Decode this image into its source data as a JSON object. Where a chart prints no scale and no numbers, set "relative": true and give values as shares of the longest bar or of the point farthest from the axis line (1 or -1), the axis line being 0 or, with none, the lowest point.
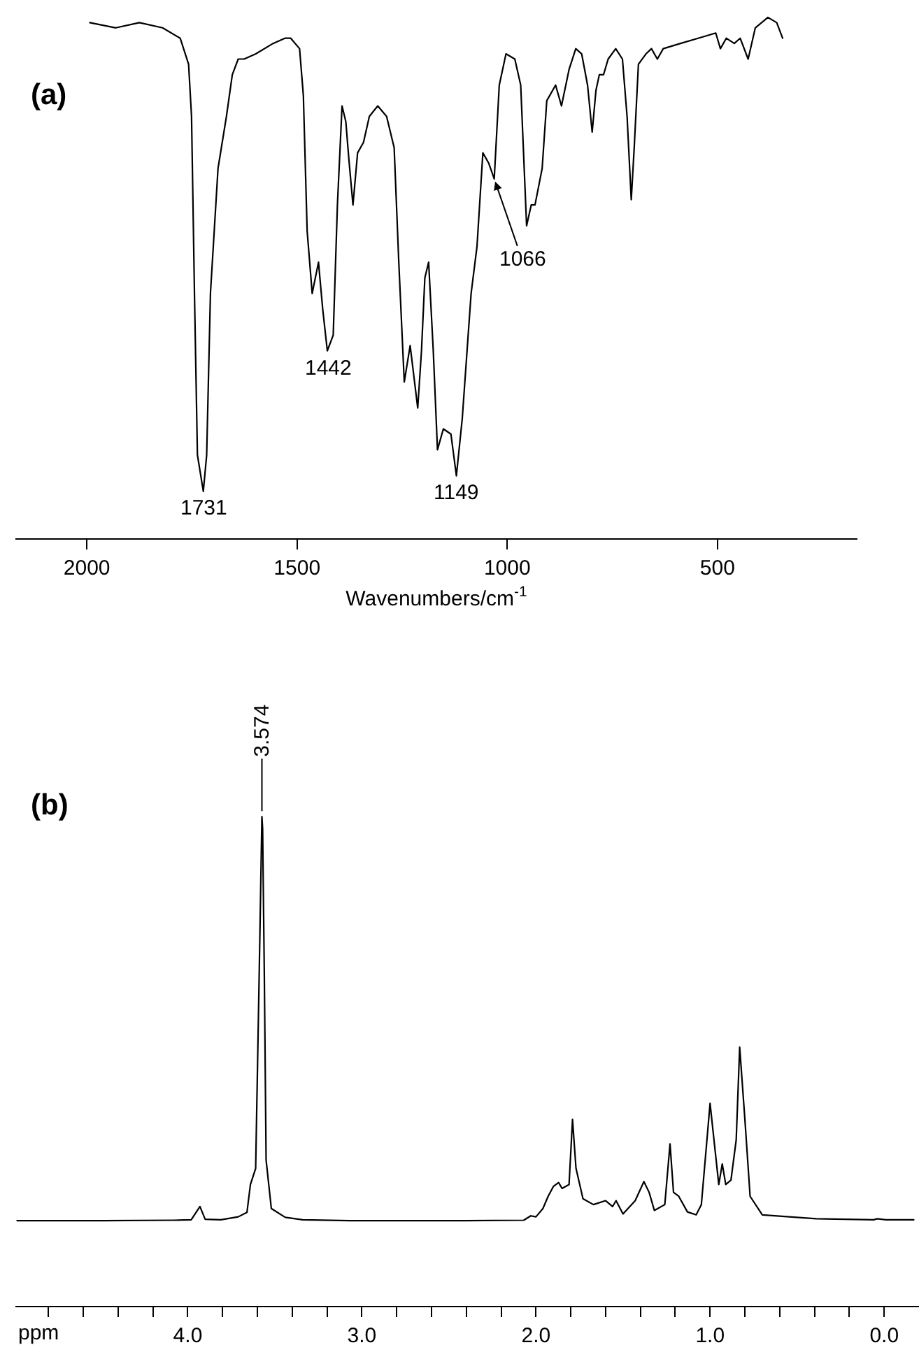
{
  "chart_data": [
    {
      "type": "line",
      "title": "(a)",
      "xlabel": "Wavenumbers/cm$^{-1}$",
      "relative": true,
      "xlim": [
        2170,
        167
      ],
      "xticks": [
        2000,
        1500,
        1000,
        500
      ],
      "x": [
        1993,
        1931,
        1875,
        1820,
        1778,
        1758,
        1751,
        1744,
        1737,
        1723,
        1715,
        1706,
        1688,
        1668,
        1654,
        1640,
        1626,
        1598,
        1557,
        1529,
        1515,
        1494,
        1485,
        1476,
        1464,
        1449,
        1439,
        1428,
        1414,
        1404,
        1393,
        1384,
        1377,
        1367,
        1356,
        1342,
        1328,
        1308,
        1287,
        1269,
        1258,
        1245,
        1231,
        1213,
        1204,
        1196,
        1187,
        1176,
        1166,
        1152,
        1134,
        1121,
        1107,
        1086,
        1072,
        1058,
        1044,
        1031,
        1019,
        1003,
        982,
        968,
        954,
        943,
        934,
        917,
        906,
        885,
        871,
        853,
        837,
        823,
        809,
        798,
        789,
        781,
        771,
        760,
        742,
        726,
        715,
        705,
        698,
        688,
        670,
        657,
        643,
        629,
        588,
        546,
        504,
        493,
        479,
        460,
        446,
        427,
        410,
        380,
        359,
        345
      ],
      "series": [
        {
          "color": "#000000",
          "values": [
            0.99,
            0.98,
            0.99,
            0.98,
            0.96,
            0.91,
            0.81,
            0.47,
            0.16,
            0.09,
            0.16,
            0.47,
            0.71,
            0.81,
            0.89,
            0.92,
            0.92,
            0.93,
            0.95,
            0.96,
            0.96,
            0.94,
            0.85,
            0.59,
            0.47,
            0.53,
            0.44,
            0.36,
            0.39,
            0.64,
            0.83,
            0.8,
            0.73,
            0.64,
            0.74,
            0.76,
            0.81,
            0.83,
            0.81,
            0.75,
            0.53,
            0.3,
            0.37,
            0.25,
            0.36,
            0.5,
            0.53,
            0.36,
            0.17,
            0.21,
            0.2,
            0.12,
            0.23,
            0.47,
            0.56,
            0.74,
            0.72,
            0.69,
            0.87,
            0.93,
            0.92,
            0.87,
            0.6,
            0.64,
            0.64,
            0.71,
            0.84,
            0.87,
            0.83,
            0.9,
            0.94,
            0.93,
            0.87,
            0.78,
            0.86,
            0.89,
            0.89,
            0.92,
            0.94,
            0.92,
            0.81,
            0.65,
            0.75,
            0.91,
            0.93,
            0.94,
            0.92,
            0.94,
            0.95,
            0.96,
            0.97,
            0.94,
            0.96,
            0.95,
            0.96,
            0.92,
            0.98,
            1.0,
            0.99,
            0.96
          ]
        }
      ],
      "annotations": [
        {
          "text": "1731",
          "x": 1723,
          "y": 0.09
        },
        {
          "text": "1442",
          "x": 1428,
          "y": 0.36
        },
        {
          "text": "1149",
          "x": 1121,
          "y": 0.12
        },
        {
          "text": "1066",
          "x": 1031,
          "y": 0.69
        }
      ]
    },
    {
      "type": "line",
      "title": "(b)",
      "xlabel": "ppm",
      "relative": true,
      "xlim": [
        4.99,
        -0.2
      ],
      "xticks": [
        {
          "value": 4.8,
          "label": null
        },
        {
          "value": 4.6,
          "label": null
        },
        {
          "value": 4.4,
          "label": null
        },
        {
          "value": 4.2,
          "label": null
        },
        {
          "value": 4,
          "label": "4.0"
        },
        {
          "value": 3.8,
          "label": null
        },
        {
          "value": 3.6,
          "label": null
        },
        {
          "value": 3.4,
          "label": null
        },
        {
          "value": 3.2,
          "label": null
        },
        {
          "value": 3,
          "label": "3.0"
        },
        {
          "value": 2.8,
          "label": null
        },
        {
          "value": 2.6,
          "label": null
        },
        {
          "value": 2.4,
          "label": null
        },
        {
          "value": 2.2,
          "label": null
        },
        {
          "value": 2,
          "label": "2.0"
        },
        {
          "value": 1.8,
          "label": null
        },
        {
          "value": 1.6,
          "label": null
        },
        {
          "value": 1.4,
          "label": null
        },
        {
          "value": 1.2,
          "label": null
        },
        {
          "value": 1,
          "label": "1.0"
        },
        {
          "value": 0.8,
          "label": null
        },
        {
          "value": 0.6,
          "label": null
        },
        {
          "value": 0.4,
          "label": null
        },
        {
          "value": 0.2,
          "label": null
        },
        {
          "value": 0,
          "label": "0.0"
        }
      ],
      "x": [
        4.98,
        4.48,
        4.08,
        3.98,
        3.93,
        3.9,
        3.81,
        3.71,
        3.66,
        3.64,
        3.61,
        3.59,
        3.574,
        3.57,
        3.56,
        3.55,
        3.52,
        3.44,
        3.34,
        3.07,
        2.4,
        2.07,
        2.03,
        2.0,
        1.96,
        1.93,
        1.9,
        1.87,
        1.85,
        1.81,
        1.79,
        1.77,
        1.73,
        1.67,
        1.6,
        1.56,
        1.54,
        1.5,
        1.43,
        1.38,
        1.35,
        1.32,
        1.26,
        1.23,
        1.21,
        1.18,
        1.13,
        1.08,
        1.05,
        1.0,
        0.97,
        0.95,
        0.93,
        0.91,
        0.88,
        0.85,
        0.83,
        0.8,
        0.77,
        0.7,
        0.39,
        0.06,
        0.04,
        -0.01,
        -0.17
      ],
      "series": [
        {
          "color": "#000000",
          "values": [
            0.174,
            0.174,
            0.175,
            0.176,
            0.203,
            0.177,
            0.176,
            0.182,
            0.191,
            0.248,
            0.281,
            0.67,
            1.0,
            0.975,
            0.67,
            0.298,
            0.199,
            0.181,
            0.176,
            0.174,
            0.174,
            0.175,
            0.184,
            0.182,
            0.199,
            0.224,
            0.244,
            0.252,
            0.24,
            0.248,
            0.381,
            0.281,
            0.219,
            0.207,
            0.215,
            0.203,
            0.215,
            0.188,
            0.215,
            0.254,
            0.232,
            0.195,
            0.207,
            0.331,
            0.232,
            0.224,
            0.192,
            0.186,
            0.207,
            0.414,
            0.314,
            0.248,
            0.29,
            0.248,
            0.257,
            0.339,
            0.529,
            0.381,
            0.224,
            0.186,
            0.178,
            0.176,
            0.178,
            0.176,
            0.176
          ]
        }
      ],
      "annotations": [
        {
          "text": "3.574",
          "x": 3.574,
          "y": 1.0
        }
      ]
    }
  ]
}
